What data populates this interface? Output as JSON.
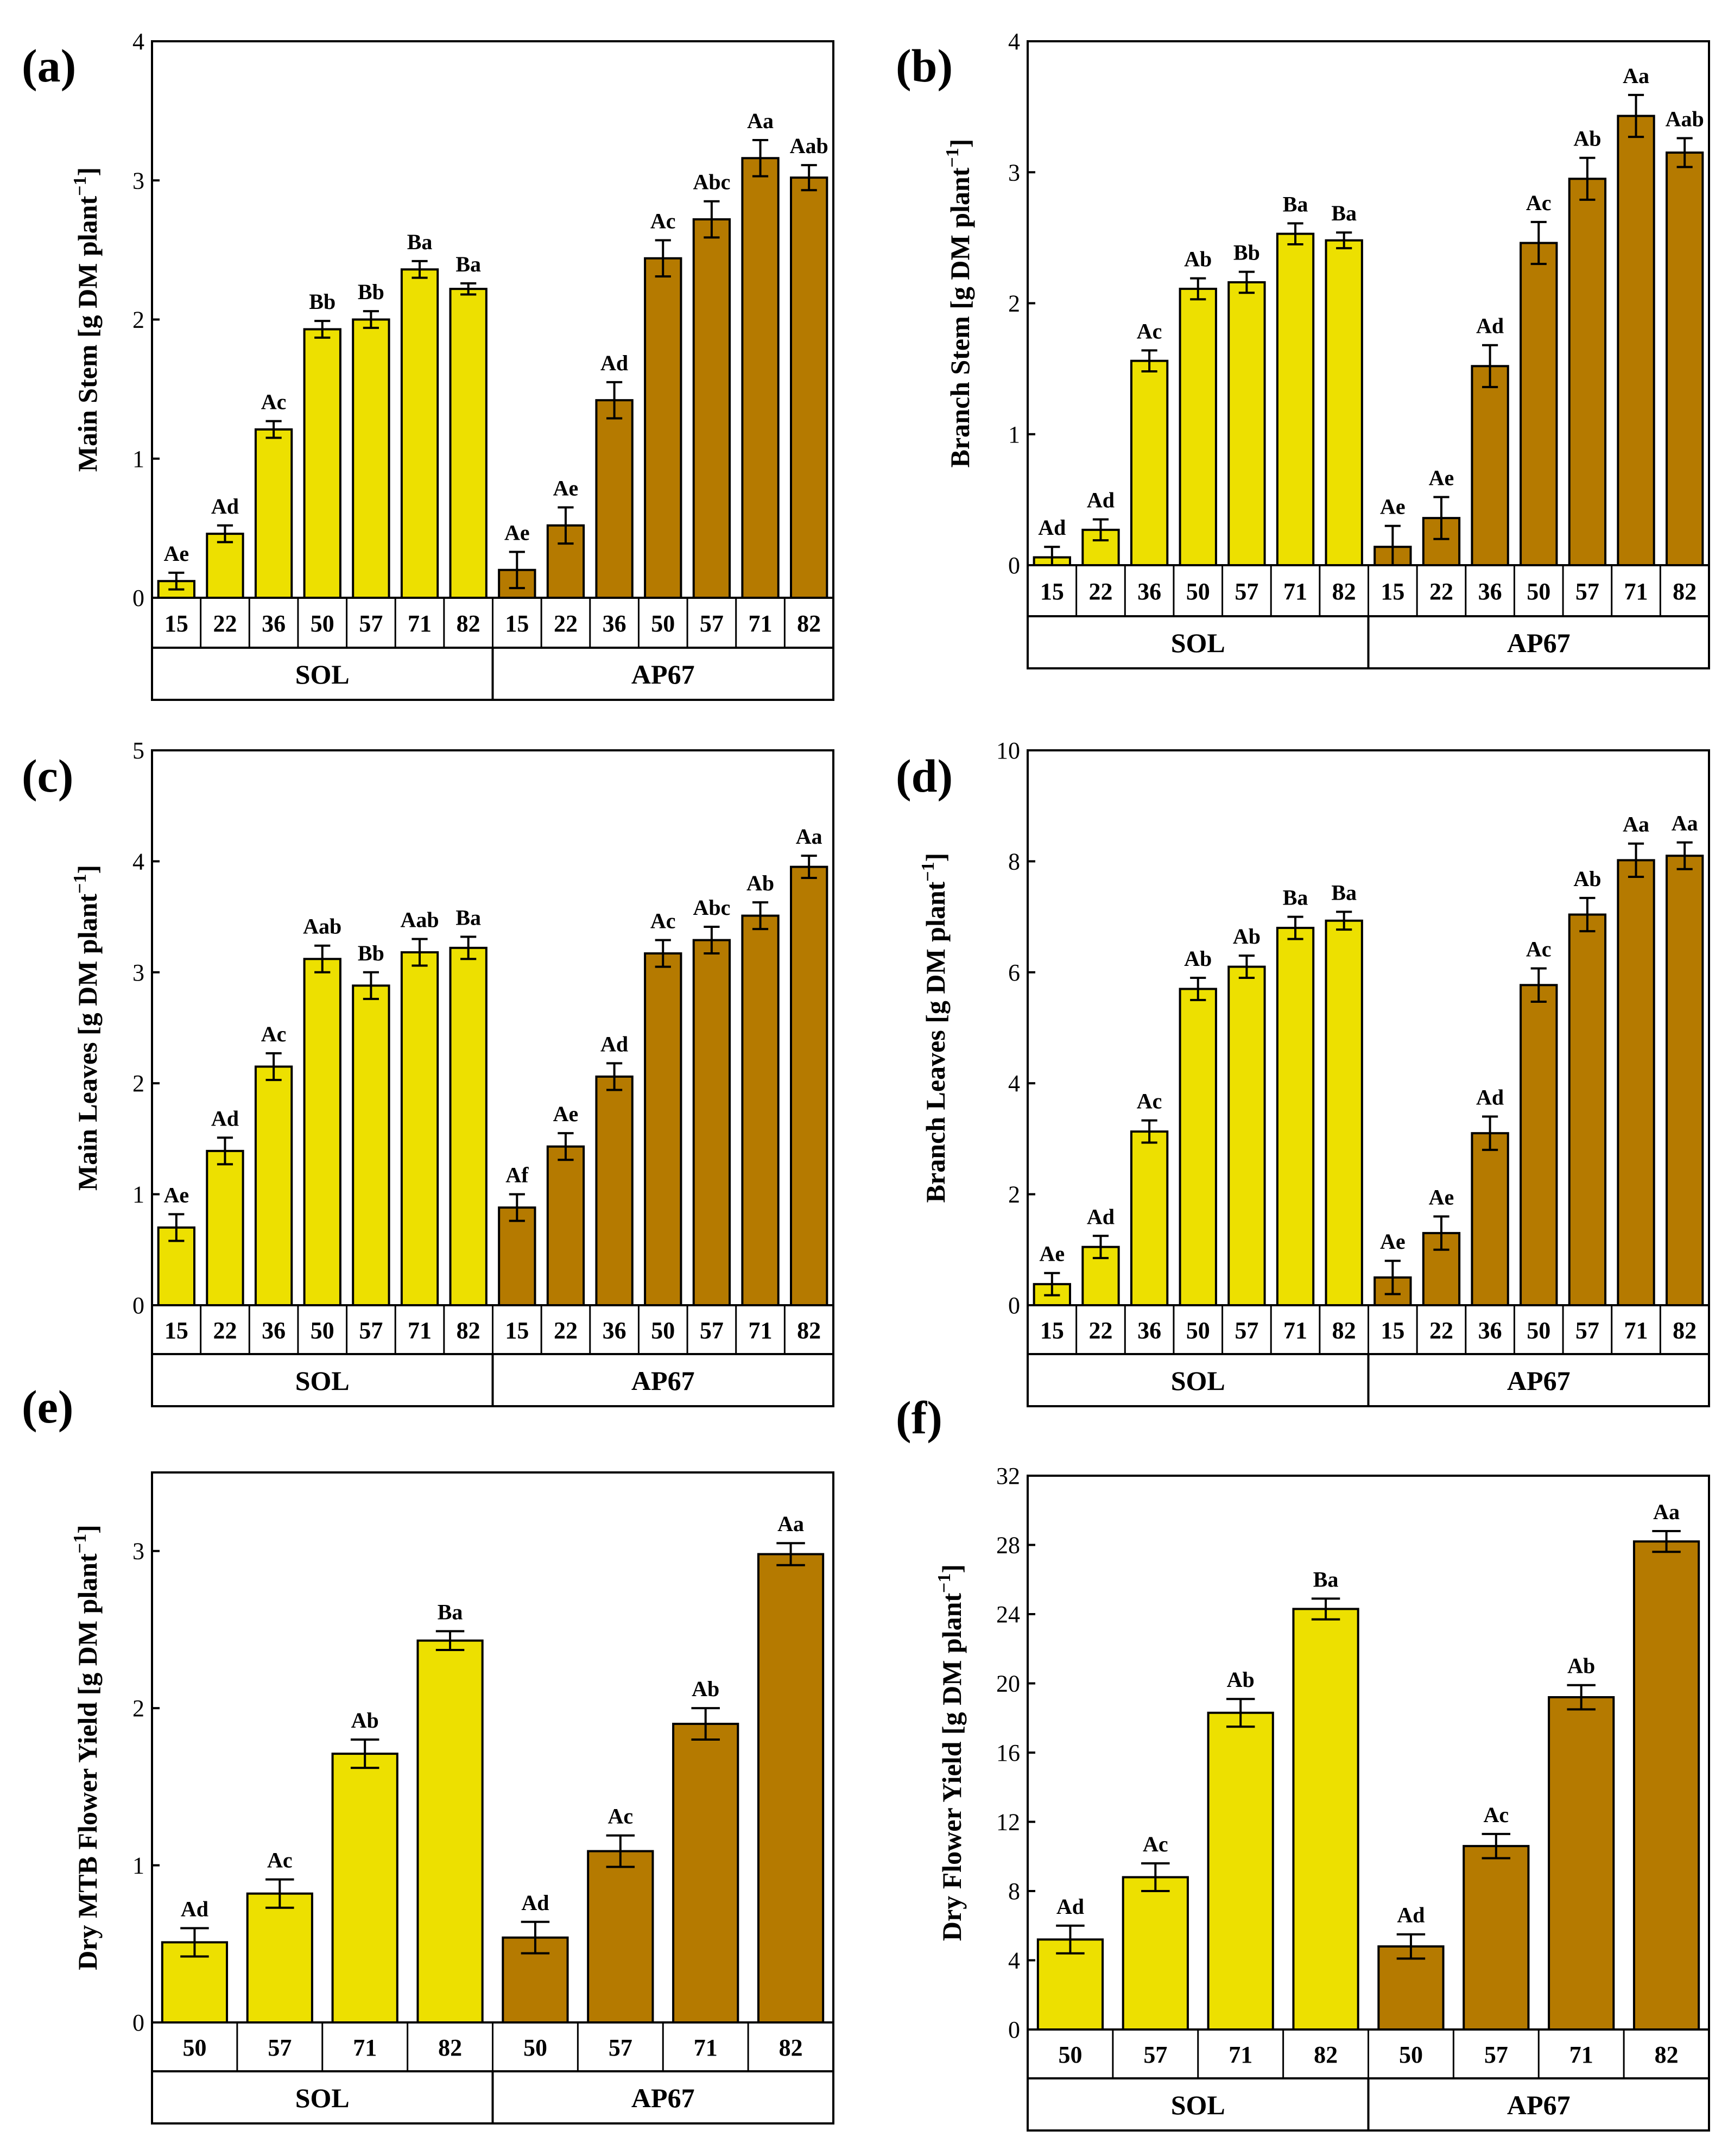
{
  "colors": {
    "sol": "#ede000",
    "ap67": "#b57a00",
    "axis": "#000000"
  },
  "groups": [
    "SOL",
    "AP67"
  ],
  "chart_data": [
    {
      "panel": "(a)",
      "type": "bar",
      "ylabel": "Main Stem [g DM plant",
      "ylabel_sup": "−1",
      "ylabel_close": "]",
      "ylim": [
        0,
        4
      ],
      "yticks": [
        0,
        1,
        2,
        3,
        4
      ],
      "categories": [
        "15",
        "22",
        "36",
        "50",
        "57",
        "71",
        "82"
      ],
      "series": [
        {
          "name": "SOL",
          "values": [
            0.12,
            0.46,
            1.21,
            1.93,
            2.0,
            2.36,
            2.22
          ],
          "errors": [
            0.06,
            0.06,
            0.06,
            0.06,
            0.06,
            0.06,
            0.04
          ],
          "labels": [
            "Ae",
            "Ad",
            "Ac",
            "Bb",
            "Bb",
            "Ba",
            "Ba"
          ]
        },
        {
          "name": "AP67",
          "values": [
            0.2,
            0.52,
            1.42,
            2.44,
            2.72,
            3.16,
            3.02
          ],
          "errors": [
            0.13,
            0.13,
            0.13,
            0.13,
            0.13,
            0.13,
            0.09
          ],
          "labels": [
            "Ae",
            "Ae",
            "Ad",
            "Ac",
            "Abc",
            "Aa",
            "Aab"
          ]
        }
      ]
    },
    {
      "panel": "(b)",
      "type": "bar",
      "ylabel": "Branch Stem [g DM plant",
      "ylabel_sup": "−1",
      "ylabel_close": "]",
      "ylim": [
        0,
        4
      ],
      "yticks": [
        0,
        1,
        2,
        3,
        4
      ],
      "categories": [
        "15",
        "22",
        "36",
        "50",
        "57",
        "71",
        "82"
      ],
      "series": [
        {
          "name": "SOL",
          "values": [
            0.06,
            0.27,
            1.56,
            2.11,
            2.16,
            2.53,
            2.48
          ],
          "errors": [
            0.08,
            0.08,
            0.08,
            0.08,
            0.08,
            0.08,
            0.06
          ],
          "labels": [
            "Ad",
            "Ad",
            "Ac",
            "Ab",
            "Bb",
            "Ba",
            "Ba"
          ]
        },
        {
          "name": "AP67",
          "values": [
            0.14,
            0.36,
            1.52,
            2.46,
            2.95,
            3.43,
            3.15
          ],
          "errors": [
            0.16,
            0.16,
            0.16,
            0.16,
            0.16,
            0.16,
            0.11
          ],
          "labels": [
            "Ae",
            "Ae",
            "Ad",
            "Ac",
            "Ab",
            "Aa",
            "Aab"
          ]
        }
      ]
    },
    {
      "panel": "(c)",
      "type": "bar",
      "ylabel": "Main Leaves [g DM plant",
      "ylabel_sup": "−1",
      "ylabel_close": "]",
      "ylim": [
        0,
        5
      ],
      "yticks": [
        0,
        1,
        2,
        3,
        4,
        5
      ],
      "categories": [
        "15",
        "22",
        "36",
        "50",
        "57",
        "71",
        "82"
      ],
      "series": [
        {
          "name": "SOL",
          "values": [
            0.7,
            1.39,
            2.15,
            3.12,
            2.88,
            3.18,
            3.22
          ],
          "errors": [
            0.12,
            0.12,
            0.12,
            0.12,
            0.12,
            0.12,
            0.1
          ],
          "labels": [
            "Ae",
            "Ad",
            "Ac",
            "Aab",
            "Bb",
            "Aab",
            "Ba"
          ]
        },
        {
          "name": "AP67",
          "values": [
            0.88,
            1.43,
            2.06,
            3.17,
            3.29,
            3.51,
            3.95
          ],
          "errors": [
            0.12,
            0.12,
            0.12,
            0.12,
            0.12,
            0.12,
            0.1
          ],
          "labels": [
            "Af",
            "Ae",
            "Ad",
            "Ac",
            "Abc",
            "Ab",
            "Aa"
          ]
        }
      ]
    },
    {
      "panel": "(d)",
      "type": "bar",
      "ylabel": "Branch Leaves [g DM plant",
      "ylabel_sup": "−1",
      "ylabel_close": "]",
      "ylim": [
        0,
        10
      ],
      "yticks": [
        0,
        2,
        4,
        6,
        8,
        10
      ],
      "categories": [
        "15",
        "22",
        "36",
        "50",
        "57",
        "71",
        "82"
      ],
      "series": [
        {
          "name": "SOL",
          "values": [
            0.38,
            1.05,
            3.13,
            5.7,
            6.1,
            6.8,
            6.93
          ],
          "errors": [
            0.2,
            0.2,
            0.2,
            0.2,
            0.2,
            0.2,
            0.16
          ],
          "labels": [
            "Ae",
            "Ad",
            "Ac",
            "Ab",
            "Ab",
            "Ba",
            "Ba"
          ]
        },
        {
          "name": "AP67",
          "values": [
            0.5,
            1.3,
            3.1,
            5.77,
            7.04,
            8.02,
            8.1
          ],
          "errors": [
            0.3,
            0.3,
            0.3,
            0.3,
            0.3,
            0.3,
            0.24
          ],
          "labels": [
            "Ae",
            "Ae",
            "Ad",
            "Ac",
            "Ab",
            "Aa",
            "Aa"
          ]
        }
      ]
    },
    {
      "panel": "(e)",
      "type": "bar",
      "ylabel": "Dry MTB Flower Yield [g DM plant",
      "ylabel_sup": "−1",
      "ylabel_close": "]",
      "ylim": [
        0,
        3.5
      ],
      "yticks": [
        0,
        1,
        2,
        3
      ],
      "categories": [
        "50",
        "57",
        "71",
        "82"
      ],
      "series": [
        {
          "name": "SOL",
          "values": [
            0.51,
            0.82,
            1.71,
            2.43
          ],
          "errors": [
            0.09,
            0.09,
            0.09,
            0.06
          ],
          "labels": [
            "Ad",
            "Ac",
            "Ab",
            "Ba"
          ]
        },
        {
          "name": "AP67",
          "values": [
            0.54,
            1.09,
            1.9,
            2.98
          ],
          "errors": [
            0.1,
            0.1,
            0.1,
            0.07
          ],
          "labels": [
            "Ad",
            "Ac",
            "Ab",
            "Aa"
          ]
        }
      ]
    },
    {
      "panel": "(f)",
      "type": "bar",
      "ylabel": "Dry Flower Yield [g DM plant",
      "ylabel_sup": "−1",
      "ylabel_close": "]",
      "ylim": [
        0,
        32
      ],
      "yticks": [
        0,
        4,
        8,
        12,
        16,
        20,
        24,
        28,
        32
      ],
      "categories": [
        "50",
        "57",
        "71",
        "82"
      ],
      "series": [
        {
          "name": "SOL",
          "values": [
            5.2,
            8.8,
            18.3,
            24.3
          ],
          "errors": [
            0.8,
            0.8,
            0.8,
            0.6
          ],
          "labels": [
            "Ad",
            "Ac",
            "Ab",
            "Ba"
          ]
        },
        {
          "name": "AP67",
          "values": [
            4.8,
            10.6,
            19.2,
            28.2
          ],
          "errors": [
            0.7,
            0.7,
            0.7,
            0.6
          ],
          "labels": [
            "Ad",
            "Ac",
            "Ab",
            "Aa"
          ]
        }
      ]
    }
  ]
}
